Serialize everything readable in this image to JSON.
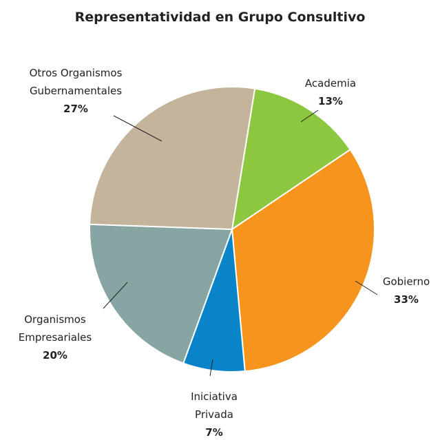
{
  "chart_data": {
    "type": "pie",
    "title": "Representatividad en Grupo Consultivo",
    "categories": [
      "Academia",
      "Gobierno",
      "Iniciativa Privada",
      "Organismos Empresariales",
      "Otros Organismos Gubernamentales"
    ],
    "values": [
      13,
      33,
      7,
      20,
      27
    ],
    "value_labels": [
      "13%",
      "33%",
      "7%",
      "20%",
      "27%"
    ],
    "colors": [
      "#8dc63f",
      "#f7941d",
      "#0a84c8",
      "#87a5a2",
      "#c4b49b"
    ]
  }
}
